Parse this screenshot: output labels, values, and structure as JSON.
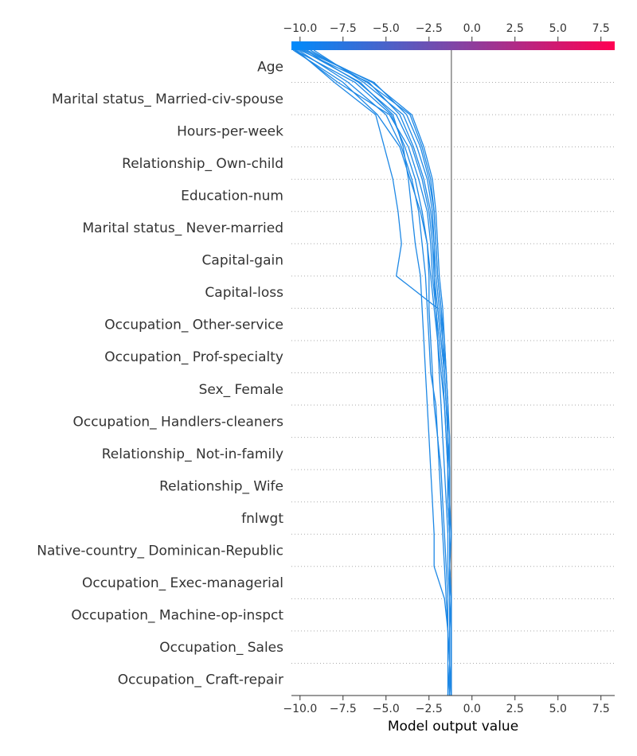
{
  "chart_data": {
    "type": "line",
    "chart_style": "decision-plot",
    "xlabel": "Model output value",
    "xlim": [
      -10.5,
      8.3
    ],
    "xticks": [
      -10.0,
      -7.5,
      -5.0,
      -2.5,
      0.0,
      2.5,
      5.0,
      7.5
    ],
    "xtick_labels": [
      "−10.0",
      "−7.5",
      "−5.0",
      "−2.5",
      "0.0",
      "2.5",
      "5.0",
      "7.5"
    ],
    "base_value": -1.2,
    "colorbar": {
      "colors": [
        "#008bfb",
        "#ff0052"
      ],
      "range": [
        -10.5,
        8.3
      ]
    },
    "line_color": "#1e88e5",
    "features": [
      "Age",
      "Marital status_ Married-civ-spouse",
      "Hours-per-week",
      "Relationship_ Own-child",
      "Education-num",
      "Marital status_ Never-married",
      "Capital-gain",
      "Capital-loss",
      "Occupation_ Other-service",
      "Occupation_ Prof-specialty",
      "Sex_ Female",
      "Occupation_ Handlers-cleaners",
      "Relationship_ Not-in-family",
      "Relationship_ Wife",
      "fnlwgt",
      "Native-country_ Dominican-Republic",
      "Occupation_ Exec-managerial",
      "Occupation_ Machine-op-inspct",
      "Occupation_ Sales",
      "Occupation_ Craft-repair"
    ],
    "series": [
      {
        "values": [
          -9.6,
          -5.8,
          -3.5,
          -2.8,
          -2.3,
          -2.1,
          -2.0,
          -1.9,
          -1.7,
          -1.6,
          -1.5,
          -1.4,
          -1.4,
          -1.3,
          -1.3,
          -1.3,
          -1.3,
          -1.2,
          -1.2,
          -1.2,
          -1.2
        ]
      },
      {
        "values": [
          -9.4,
          -6.1,
          -3.6,
          -2.9,
          -2.4,
          -2.2,
          -2.1,
          -2.0,
          -1.8,
          -1.7,
          -1.5,
          -1.4,
          -1.4,
          -1.3,
          -1.3,
          -1.3,
          -1.3,
          -1.2,
          -1.2,
          -1.2,
          -1.2
        ]
      },
      {
        "values": [
          -9.8,
          -5.7,
          -3.8,
          -3.0,
          -2.5,
          -2.2,
          -2.1,
          -2.0,
          -1.8,
          -1.6,
          -1.5,
          -1.4,
          -1.3,
          -1.3,
          -1.3,
          -1.2,
          -1.3,
          -1.2,
          -1.2,
          -1.2,
          -1.3
        ]
      },
      {
        "values": [
          -10.0,
          -6.0,
          -4.2,
          -3.4,
          -2.8,
          -2.4,
          -2.2,
          -2.1,
          -1.9,
          -1.7,
          -1.6,
          -1.5,
          -1.4,
          -1.4,
          -1.4,
          -1.3,
          -1.3,
          -1.3,
          -1.3,
          -1.3,
          -1.3
        ]
      },
      {
        "values": [
          -9.2,
          -6.3,
          -4.0,
          -3.2,
          -2.6,
          -2.3,
          -2.2,
          -2.2,
          -2.0,
          -1.8,
          -1.6,
          -1.5,
          -1.4,
          -1.4,
          -1.3,
          -1.3,
          -1.3,
          -1.3,
          -1.2,
          -1.2,
          -1.2
        ]
      },
      {
        "values": [
          -10.3,
          -7.8,
          -4.8,
          -3.7,
          -3.1,
          -2.6,
          -2.4,
          -2.3,
          -2.1,
          -1.9,
          -1.7,
          -1.6,
          -1.5,
          -1.4,
          -1.4,
          -1.3,
          -1.3,
          -1.3,
          -1.3,
          -1.3,
          -1.3
        ]
      },
      {
        "values": [
          -10.4,
          -7.5,
          -5.5,
          -4.2,
          -3.6,
          -3.0,
          -2.6,
          -2.4,
          -2.2,
          -2.0,
          -1.8,
          -1.6,
          -1.5,
          -1.4,
          -1.4,
          -1.3,
          -1.3,
          -1.3,
          -1.3,
          -1.3,
          -1.4
        ]
      },
      {
        "values": [
          -10.2,
          -8.0,
          -5.6,
          -5.1,
          -4.6,
          -4.3,
          -4.1,
          -4.4,
          -2.0,
          -1.8,
          -1.6,
          -1.5,
          -1.4,
          -1.3,
          -1.3,
          -1.3,
          -1.3,
          -1.3,
          -1.3,
          -1.3,
          -1.3
        ]
      },
      {
        "values": [
          -9.9,
          -6.5,
          -4.6,
          -4.0,
          -3.7,
          -3.5,
          -3.3,
          -3.0,
          -2.9,
          -2.8,
          -2.7,
          -2.6,
          -2.5,
          -2.4,
          -2.3,
          -2.2,
          -2.2,
          -1.6,
          -1.4,
          -1.3,
          -1.3
        ]
      },
      {
        "values": [
          -10.1,
          -7.2,
          -5.0,
          -4.1,
          -3.5,
          -3.1,
          -2.9,
          -2.7,
          -2.6,
          -2.5,
          -2.4,
          -2.1,
          -2.0,
          -1.9,
          -1.8,
          -1.7,
          -1.6,
          -1.5,
          -1.4,
          -1.4,
          -1.4
        ]
      },
      {
        "values": [
          -9.7,
          -6.6,
          -4.4,
          -3.5,
          -2.9,
          -2.5,
          -2.3,
          -2.2,
          -2.1,
          -2.0,
          -1.9,
          -1.8,
          -1.7,
          -1.6,
          -1.5,
          -1.4,
          -1.4,
          -1.3,
          -1.3,
          -1.3,
          -1.2
        ]
      },
      {
        "values": [
          -10.3,
          -6.8,
          -4.7,
          -3.9,
          -3.3,
          -2.9,
          -2.6,
          -2.5,
          -2.5,
          -2.4,
          -2.3,
          -2.2,
          -2.0,
          -1.8,
          -1.7,
          -1.6,
          -1.5,
          -1.4,
          -1.4,
          -1.3,
          -1.4
        ]
      }
    ]
  }
}
